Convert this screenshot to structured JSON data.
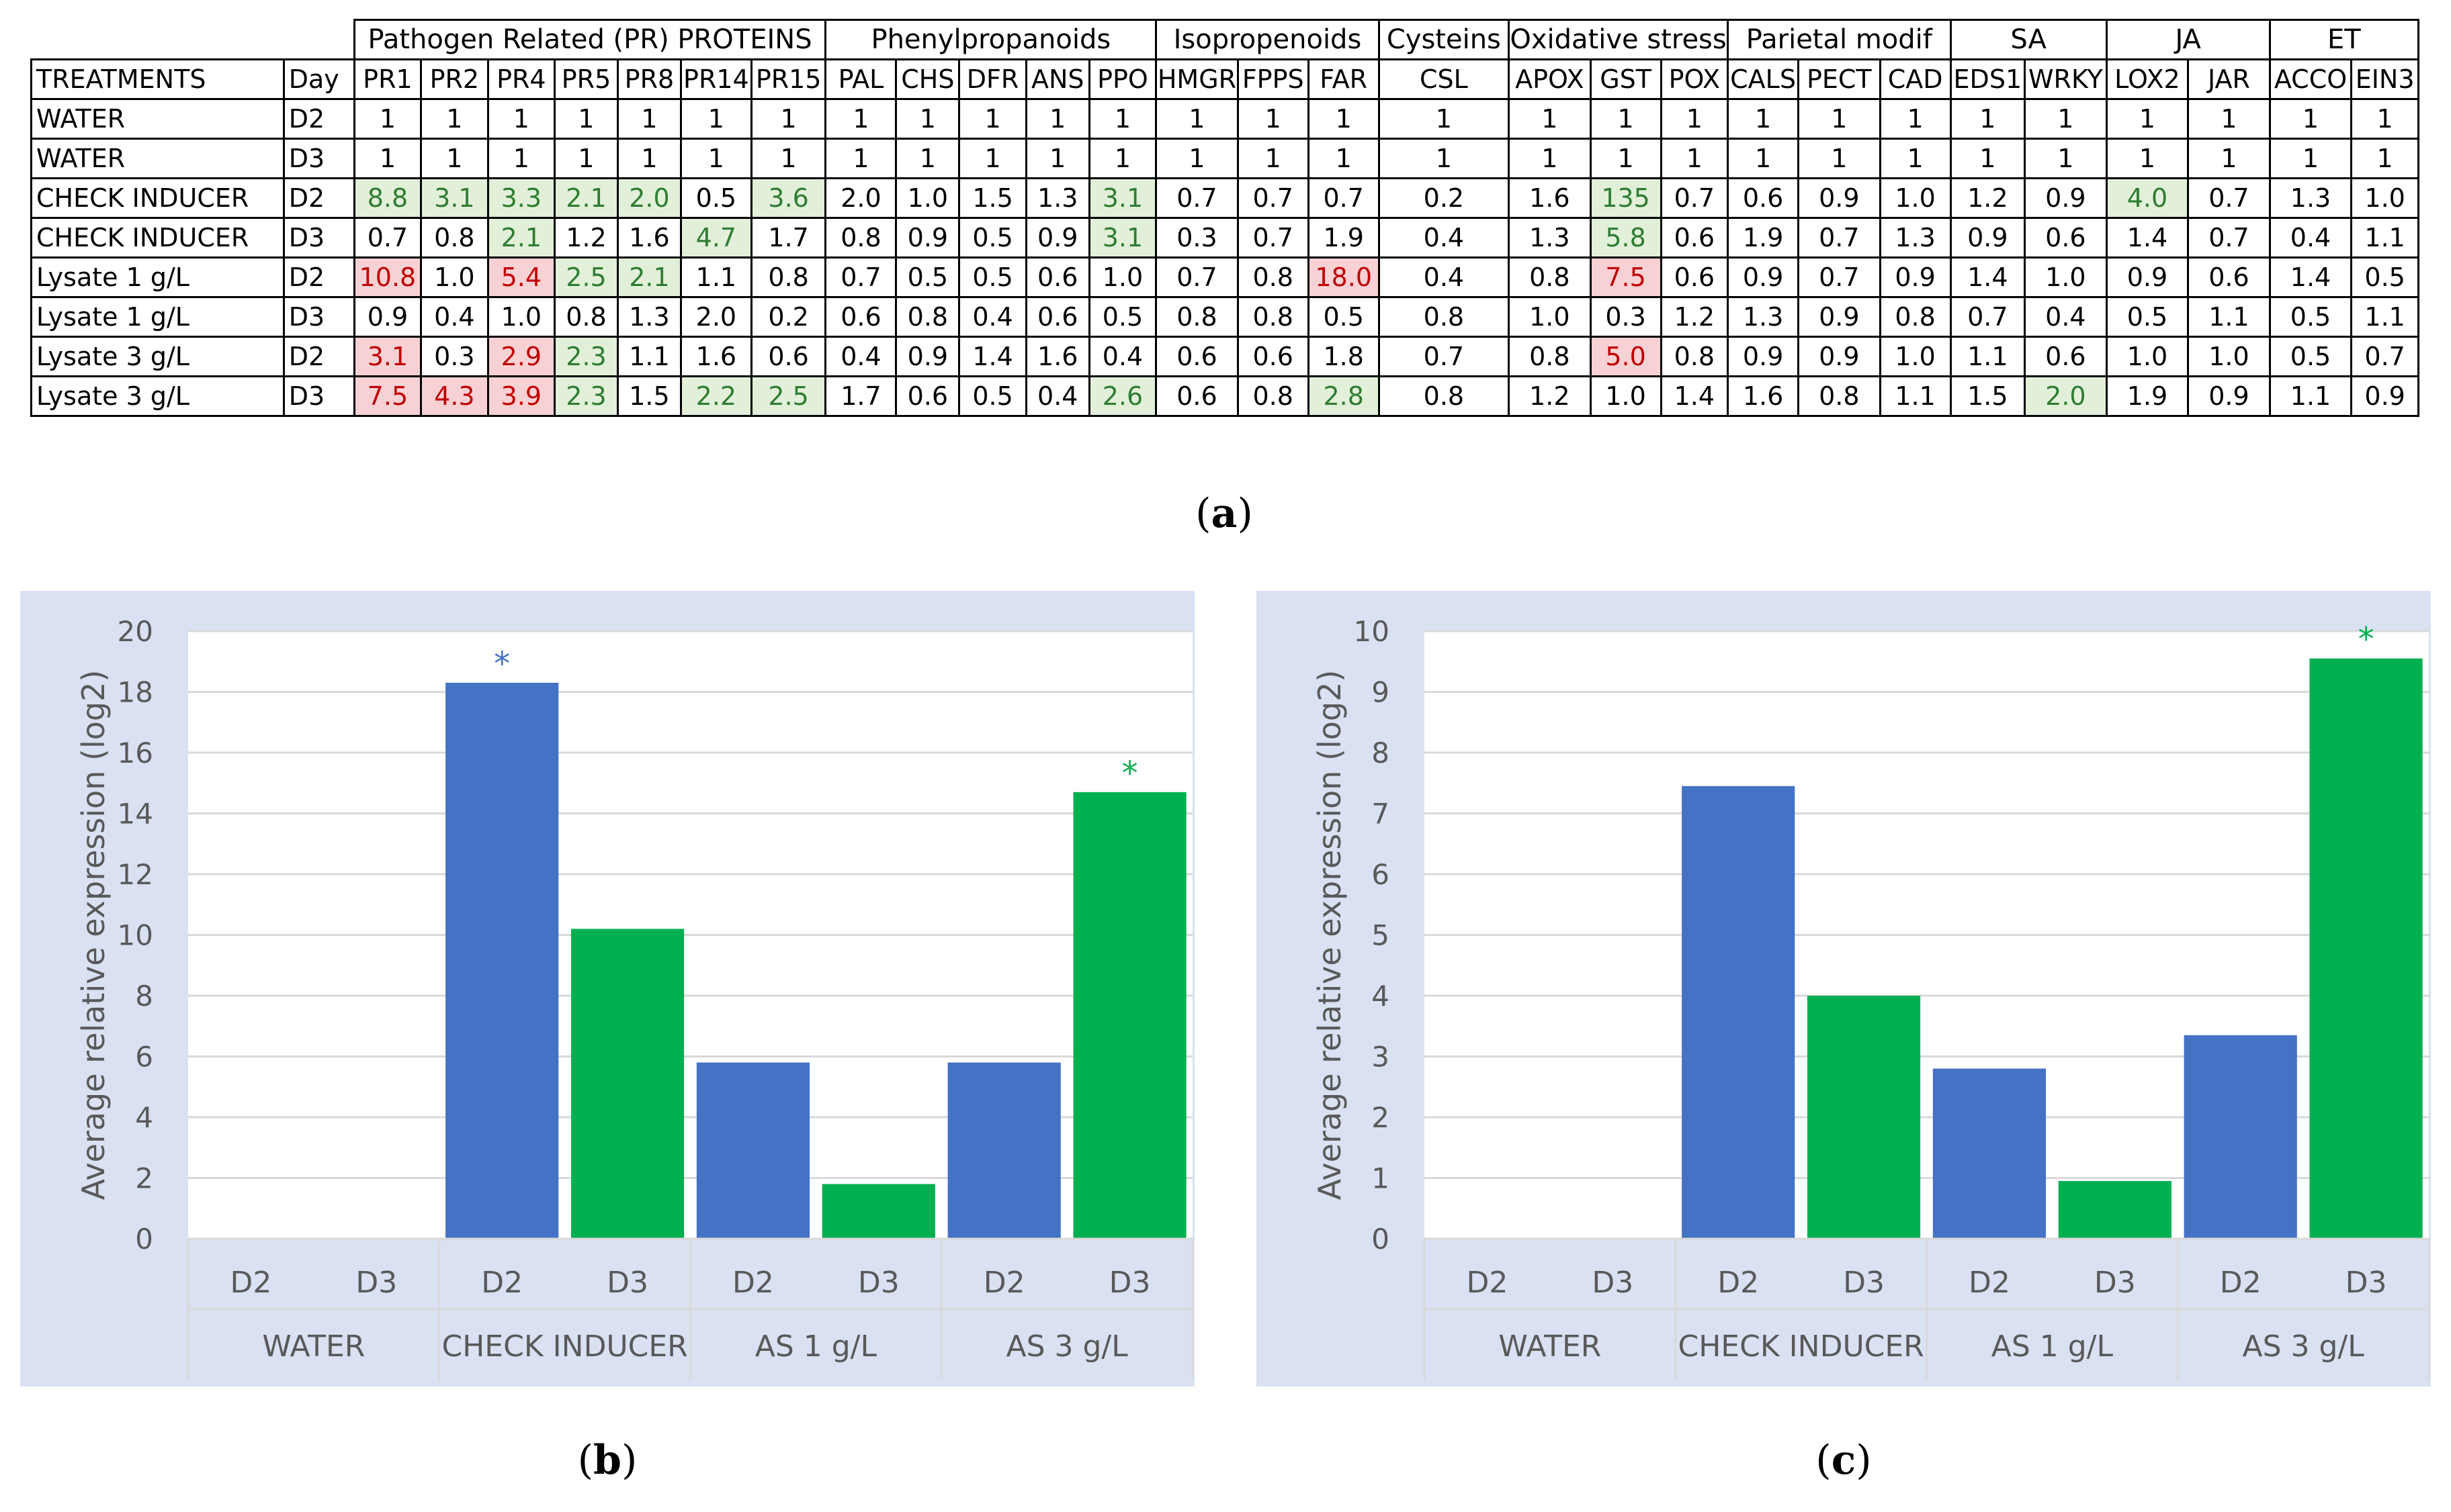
{
  "table": {
    "header_treatments": "TREATMENTS",
    "header_day": "Day",
    "groups": [
      {
        "name": "Pathogen Related (PR) PROTEINS",
        "span": 7
      },
      {
        "name": "Phenylpropanoids",
        "span": 5
      },
      {
        "name": "Isopropenoids",
        "span": 3
      },
      {
        "name": "Cysteins",
        "span": 1
      },
      {
        "name": "Oxidative stress",
        "span": 3
      },
      {
        "name": "Parietal modif",
        "span": 3
      },
      {
        "name": "SA",
        "span": 2
      },
      {
        "name": "JA",
        "span": 2
      },
      {
        "name": "ET",
        "span": 2
      }
    ],
    "genes": [
      "PR1",
      "PR2",
      "PR4",
      "PR5",
      "PR8",
      "PR14",
      "PR15",
      "PAL",
      "CHS",
      "DFR",
      "ANS",
      "PPO",
      "HMGR",
      "FPPS",
      "FAR",
      "CSL",
      "APOX",
      "GST",
      "POX",
      "CALS",
      "PECT",
      "CAD",
      "EDS1",
      "WRKY",
      "LOX2",
      "JAR",
      "ACCO",
      "EIN3"
    ],
    "highlight_colors": {
      "green": "#e2f0d9",
      "red": "#f8d1d5",
      "green_text": "#2e7d32",
      "red_text": "#c00000"
    },
    "rows": [
      {
        "treatment": "WATER",
        "day": "D2",
        "values": [
          "1",
          "1",
          "1",
          "1",
          "1",
          "1",
          "1",
          "1",
          "1",
          "1",
          "1",
          "1",
          "1",
          "1",
          "1",
          "1",
          "1",
          "1",
          "1",
          "1",
          "1",
          "1",
          "1",
          "1",
          "1",
          "1",
          "1",
          "1"
        ],
        "highlight": "............................"
      },
      {
        "treatment": "WATER",
        "day": "D3",
        "values": [
          "1",
          "1",
          "1",
          "1",
          "1",
          "1",
          "1",
          "1",
          "1",
          "1",
          "1",
          "1",
          "1",
          "1",
          "1",
          "1",
          "1",
          "1",
          "1",
          "1",
          "1",
          "1",
          "1",
          "1",
          "1",
          "1",
          "1",
          "1"
        ],
        "highlight": "............................"
      },
      {
        "treatment": "CHECK INDUCER",
        "day": "D2",
        "values": [
          "8.8",
          "3.1",
          "3.3",
          "2.1",
          "2.0",
          "0.5",
          "3.6",
          "2.0",
          "1.0",
          "1.5",
          "1.3",
          "3.1",
          "0.7",
          "0.7",
          "0.7",
          "0.2",
          "1.6",
          "135",
          "0.7",
          "0.6",
          "0.9",
          "1.0",
          "1.2",
          "0.9",
          "4.0",
          "0.7",
          "1.3",
          "1.0"
        ],
        "highlight": "ggggg.g....g.....g......g..."
      },
      {
        "treatment": "CHECK INDUCER",
        "day": "D3",
        "values": [
          "0.7",
          "0.8",
          "2.1",
          "1.2",
          "1.6",
          "4.7",
          "1.7",
          "0.8",
          "0.9",
          "0.5",
          "0.9",
          "3.1",
          "0.3",
          "0.7",
          "1.9",
          "0.4",
          "1.3",
          "5.8",
          "0.6",
          "1.9",
          "0.7",
          "1.3",
          "0.9",
          "0.6",
          "1.4",
          "0.7",
          "0.4",
          "1.1"
        ],
        "highlight": "..g..g.....g.....g.........."
      },
      {
        "treatment": "Lysate 1 g/L",
        "day": "D2",
        "values": [
          "10.8",
          "1.0",
          "5.4",
          "2.5",
          "2.1",
          "1.1",
          "0.8",
          "0.7",
          "0.5",
          "0.5",
          "0.6",
          "1.0",
          "0.7",
          "0.8",
          "18.0",
          "0.4",
          "0.8",
          "7.5",
          "0.6",
          "0.9",
          "0.7",
          "0.9",
          "1.4",
          "1.0",
          "0.9",
          "0.6",
          "1.4",
          "0.5"
        ],
        "highlight": "r.rgg.........r..r.........."
      },
      {
        "treatment": "Lysate 1 g/L",
        "day": "D3",
        "values": [
          "0.9",
          "0.4",
          "1.0",
          "0.8",
          "1.3",
          "2.0",
          "0.2",
          "0.6",
          "0.8",
          "0.4",
          "0.6",
          "0.5",
          "0.8",
          "0.8",
          "0.5",
          "0.8",
          "1.0",
          "0.3",
          "1.2",
          "1.3",
          "0.9",
          "0.8",
          "0.7",
          "0.4",
          "0.5",
          "1.1",
          "0.5",
          "1.1"
        ],
        "highlight": "............................"
      },
      {
        "treatment": "Lysate 3 g/L",
        "day": "D2",
        "values": [
          "3.1",
          "0.3",
          "2.9",
          "2.3",
          "1.1",
          "1.6",
          "0.6",
          "0.4",
          "0.9",
          "1.4",
          "1.6",
          "0.4",
          "0.6",
          "0.6",
          "1.8",
          "0.7",
          "0.8",
          "5.0",
          "0.8",
          "0.9",
          "0.9",
          "1.0",
          "1.1",
          "0.6",
          "1.0",
          "1.0",
          "0.5",
          "0.7"
        ],
        "highlight": "r.rg.............r.........."
      },
      {
        "treatment": "Lysate 3 g/L",
        "day": "D3",
        "values": [
          "7.5",
          "4.3",
          "3.9",
          "2.3",
          "1.5",
          "2.2",
          "2.5",
          "1.7",
          "0.6",
          "0.5",
          "0.4",
          "2.6",
          "0.6",
          "0.8",
          "2.8",
          "0.8",
          "1.2",
          "1.0",
          "1.4",
          "1.6",
          "0.8",
          "1.1",
          "1.5",
          "2.0",
          "1.9",
          "0.9",
          "1.1",
          "0.9"
        ],
        "highlight": "rrrg.gg....g..g........g...."
      }
    ]
  },
  "panel_labels": {
    "a": "a",
    "b": "b",
    "c": "c"
  },
  "chart_data": [
    {
      "type": "bar",
      "panel": "b",
      "ylabel": "Average relative expression (log2)",
      "ylim": [
        0,
        20
      ],
      "yticks": [
        "0",
        "2",
        "4",
        "6",
        "8",
        "10",
        "12",
        "14",
        "16",
        "18",
        "20"
      ],
      "groups": [
        "WATER",
        "CHECK INDUCER",
        "AS 1 g/L",
        "AS 3 g/L"
      ],
      "categories": [
        "D2",
        "D3",
        "D2",
        "D3",
        "D2",
        "D3",
        "D2",
        "D3"
      ],
      "values": [
        0,
        0,
        18.3,
        10.2,
        5.8,
        1.8,
        5.8,
        14.7
      ],
      "series_colors": {
        "D2": "#4472c4",
        "D3": "#00b050"
      },
      "significance": [
        {
          "index": 2,
          "label": "*"
        },
        {
          "index": 7,
          "label": "*"
        }
      ]
    },
    {
      "type": "bar",
      "panel": "c",
      "ylabel": "Average relative expression (log2)",
      "ylim": [
        0,
        10
      ],
      "yticks": [
        "0",
        "1",
        "2",
        "3",
        "4",
        "5",
        "6",
        "7",
        "8",
        "9",
        "10"
      ],
      "groups": [
        "WATER",
        "CHECK INDUCER",
        "AS 1 g/L",
        "AS 3 g/L"
      ],
      "categories": [
        "D2",
        "D3",
        "D2",
        "D3",
        "D2",
        "D3",
        "D2",
        "D3"
      ],
      "values": [
        0,
        0,
        7.45,
        4.0,
        2.8,
        0.95,
        3.35,
        9.55
      ],
      "series_colors": {
        "D2": "#4472c4",
        "D3": "#00b050"
      },
      "significance": [
        {
          "index": 7,
          "label": "*"
        }
      ]
    }
  ]
}
